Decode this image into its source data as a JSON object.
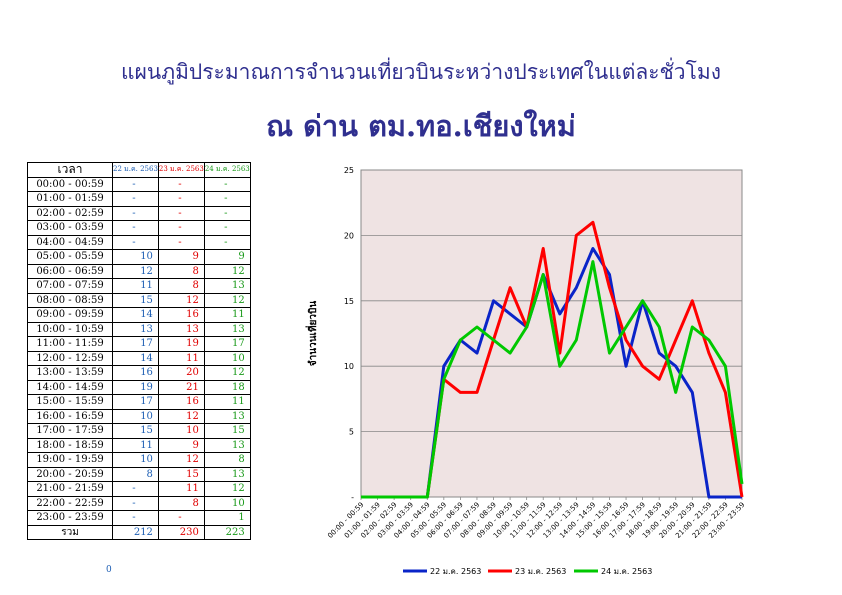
{
  "title": "แผนภูมิประมาณการจำนวนเที่ยวบินระหว่างประเทศในแต่ละชั่วโมง",
  "subtitle": "ณ  ด่าน  ตม.ทอ.เชียงใหม่",
  "table": {
    "header_time": "เวลา",
    "header_dates": [
      "22 ม.ค. 2563",
      "23 ม.ค. 2563",
      "24 ม.ค. 2563"
    ],
    "rows": [
      {
        "time": "00:00 - 00:59",
        "v": [
          "-",
          "-",
          "-"
        ]
      },
      {
        "time": "01:00 - 01:59",
        "v": [
          "-",
          "-",
          "-"
        ]
      },
      {
        "time": "02:00 - 02:59",
        "v": [
          "-",
          "-",
          "-"
        ]
      },
      {
        "time": "03:00 - 03:59",
        "v": [
          "-",
          "-",
          "-"
        ]
      },
      {
        "time": "04:00 - 04:59",
        "v": [
          "-",
          "-",
          "-"
        ]
      },
      {
        "time": "05:00 - 05:59",
        "v": [
          "10",
          "9",
          "9"
        ]
      },
      {
        "time": "06:00 - 06:59",
        "v": [
          "12",
          "8",
          "12"
        ]
      },
      {
        "time": "07:00 - 07:59",
        "v": [
          "11",
          "8",
          "13"
        ]
      },
      {
        "time": "08:00 - 08:59",
        "v": [
          "15",
          "12",
          "12"
        ]
      },
      {
        "time": "09:00 - 09:59",
        "v": [
          "14",
          "16",
          "11"
        ]
      },
      {
        "time": "10:00 - 10:59",
        "v": [
          "13",
          "13",
          "13"
        ]
      },
      {
        "time": "11:00 - 11:59",
        "v": [
          "17",
          "19",
          "17"
        ]
      },
      {
        "time": "12:00 - 12:59",
        "v": [
          "14",
          "11",
          "10"
        ]
      },
      {
        "time": "13:00 - 13:59",
        "v": [
          "16",
          "20",
          "12"
        ]
      },
      {
        "time": "14:00 - 14:59",
        "v": [
          "19",
          "21",
          "18"
        ]
      },
      {
        "time": "15:00 - 15:59",
        "v": [
          "17",
          "16",
          "11"
        ]
      },
      {
        "time": "16:00 - 16:59",
        "v": [
          "10",
          "12",
          "13"
        ]
      },
      {
        "time": "17:00 - 17:59",
        "v": [
          "15",
          "10",
          "15"
        ]
      },
      {
        "time": "18:00 - 18:59",
        "v": [
          "11",
          "9",
          "13"
        ]
      },
      {
        "time": "19:00 - 19:59",
        "v": [
          "10",
          "12",
          "8"
        ]
      },
      {
        "time": "20:00 - 20:59",
        "v": [
          "8",
          "15",
          "13"
        ]
      },
      {
        "time": "21:00 - 21:59",
        "v": [
          "-",
          "11",
          "12"
        ]
      },
      {
        "time": "22:00 - 22:59",
        "v": [
          "-",
          "8",
          "10"
        ]
      },
      {
        "time": "23:00 - 23:59",
        "v": [
          "-",
          "-",
          "1"
        ]
      }
    ],
    "total_label": "รวม",
    "totals": [
      "212",
      "230",
      "223"
    ]
  },
  "footnote": "0",
  "colors": {
    "title": "#2f2f8f",
    "s1": "#0a24c8",
    "s2": "#ff0000",
    "s3": "#00c800",
    "plot_bg": "#efe3e3"
  },
  "chart_data": {
    "type": "line",
    "ylabel": "จำนวนเที่ยวบิน",
    "xlabel": "",
    "ylim": [
      0,
      25
    ],
    "yticks": [
      "-",
      "5",
      "10",
      "15",
      "20",
      "25"
    ],
    "grid": true,
    "legend": "bottom",
    "categories": [
      "00:00 - 00:59",
      "01:00 - 01:59",
      "02:00 - 02:59",
      "03:00 - 03:59",
      "04:00 - 04:59",
      "05:00 - 05:59",
      "06:00 - 06:59",
      "07:00 - 07:59",
      "08:00 - 08:59",
      "09:00 - 09:59",
      "10:00 - 10:59",
      "11:00 - 11:59",
      "12:00 - 12:59",
      "13:00 - 13:59",
      "14:00 - 14:59",
      "15:00 - 15:59",
      "16:00 - 16:59",
      "17:00 - 17:59",
      "18:00 - 18:59",
      "19:00 - 19:59",
      "20:00 - 20:59",
      "21:00 - 21:59",
      "22:00 - 22:59",
      "23:00 - 23:59"
    ],
    "series": [
      {
        "name": "22 ม.ค. 2563",
        "values": [
          0,
          0,
          0,
          0,
          0,
          10,
          12,
          11,
          15,
          14,
          13,
          17,
          14,
          16,
          19,
          17,
          10,
          15,
          11,
          10,
          8,
          0,
          0,
          0
        ]
      },
      {
        "name": "23 ม.ค. 2563",
        "values": [
          0,
          0,
          0,
          0,
          0,
          9,
          8,
          8,
          12,
          16,
          13,
          19,
          11,
          20,
          21,
          16,
          12,
          10,
          9,
          12,
          15,
          11,
          8,
          0
        ]
      },
      {
        "name": "24 ม.ค. 2563",
        "values": [
          0,
          0,
          0,
          0,
          0,
          9,
          12,
          13,
          12,
          11,
          13,
          17,
          10,
          12,
          18,
          11,
          13,
          15,
          13,
          8,
          13,
          12,
          10,
          1
        ]
      }
    ]
  }
}
